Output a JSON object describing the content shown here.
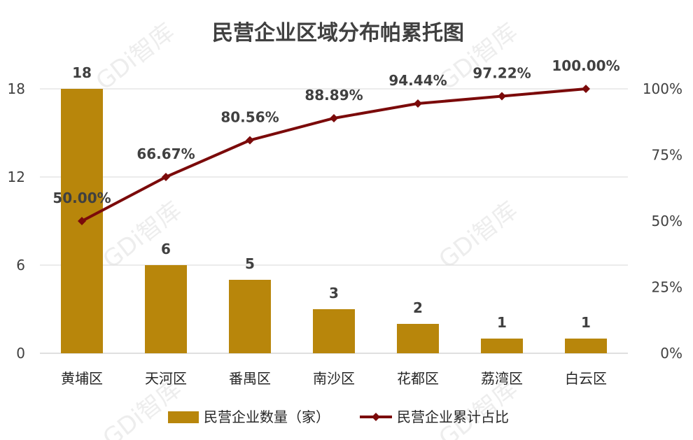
{
  "chart_data": {
    "type": "bar",
    "title": "民营企业区域分布帕累托图",
    "categories": [
      "黄埔区",
      "天河区",
      "番禺区",
      "南沙区",
      "花都区",
      "荔湾区",
      "白云区"
    ],
    "series": [
      {
        "name": "民营企业数量（家）",
        "type": "bar",
        "axis": "left",
        "color": "#b8860b",
        "values": [
          18,
          6,
          5,
          3,
          2,
          1,
          1
        ],
        "labels": [
          "18",
          "6",
          "5",
          "3",
          "2",
          "1",
          "1"
        ]
      },
      {
        "name": "民营企业累计占比",
        "type": "line",
        "axis": "right",
        "color": "#7b0a0a",
        "marker": "diamond",
        "values": [
          50.0,
          66.67,
          80.56,
          88.89,
          94.44,
          97.22,
          100.0
        ],
        "labels": [
          "50.00%",
          "66.67%",
          "80.56%",
          "88.89%",
          "94.44%",
          "97.22%",
          "100.00%"
        ]
      }
    ],
    "y_left": {
      "ylim": [
        0,
        18
      ],
      "ticks": [
        "0",
        "6",
        "12",
        "18"
      ],
      "tick_values": [
        0,
        6,
        12,
        18
      ]
    },
    "y_right": {
      "ylim": [
        0,
        100
      ],
      "ticks": [
        "0%",
        "25%",
        "50%",
        "75%",
        "100%"
      ],
      "tick_values": [
        0,
        25,
        50,
        75,
        100
      ]
    },
    "grid": true,
    "legend_position": "bottom"
  },
  "watermark": "GDi智库"
}
